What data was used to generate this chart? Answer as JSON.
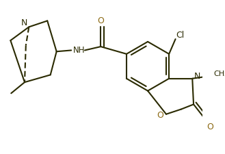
{
  "background_color": "#ffffff",
  "line_color": "#2a2a00",
  "heteroatom_color": "#8B6914",
  "figsize": [
    3.29,
    2.25
  ],
  "dpi": 100,
  "xlim": [
    0,
    329
  ],
  "ylim": [
    0,
    225
  ]
}
